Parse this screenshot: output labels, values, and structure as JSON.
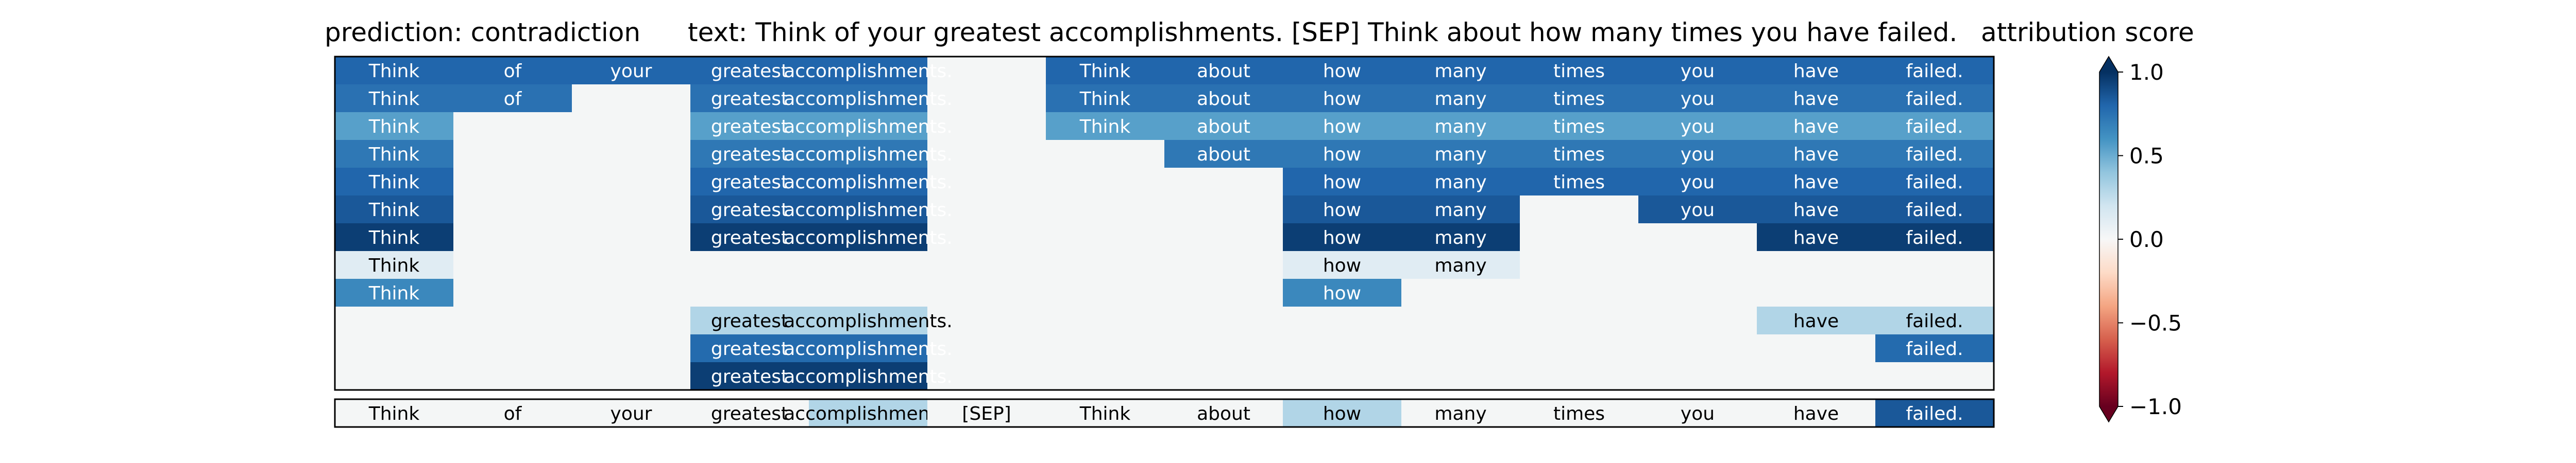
{
  "chart_data": {
    "type": "heatmap",
    "title_left": "prediction:  contradiction",
    "title_mid": "text:  Think of your greatest accomplishments. [SEP] Think about how many times you have failed.",
    "title_right": "attribution score",
    "tokens": [
      "Think",
      "of",
      "your",
      "greatest",
      "accomplishments.",
      "[SEP]",
      "Think",
      "about",
      "how",
      "many",
      "times",
      "you",
      "have",
      "failed."
    ],
    "rows": [
      [
        0.8,
        0.8,
        0.8,
        0.8,
        0.8,
        null,
        0.8,
        0.8,
        0.8,
        0.8,
        0.8,
        0.8,
        0.8,
        0.8
      ],
      [
        0.75,
        0.75,
        null,
        0.75,
        0.75,
        null,
        0.75,
        0.75,
        0.75,
        0.75,
        0.75,
        0.75,
        0.75,
        0.75
      ],
      [
        0.55,
        null,
        null,
        0.55,
        0.55,
        null,
        0.55,
        0.55,
        0.55,
        0.55,
        0.55,
        0.55,
        0.55,
        0.55
      ],
      [
        0.72,
        null,
        null,
        0.72,
        0.72,
        null,
        null,
        0.72,
        0.72,
        0.72,
        0.72,
        0.72,
        0.72,
        0.72
      ],
      [
        0.8,
        null,
        null,
        0.8,
        0.8,
        null,
        null,
        null,
        0.8,
        0.8,
        0.8,
        0.8,
        0.8,
        0.8
      ],
      [
        0.85,
        null,
        null,
        0.85,
        0.85,
        null,
        null,
        null,
        0.85,
        0.85,
        null,
        0.85,
        0.85,
        0.85
      ],
      [
        0.95,
        null,
        null,
        0.95,
        0.95,
        null,
        null,
        null,
        0.95,
        0.95,
        null,
        null,
        0.95,
        0.95
      ],
      [
        0.12,
        null,
        null,
        null,
        null,
        null,
        null,
        null,
        0.12,
        0.12,
        null,
        null,
        null,
        null
      ],
      [
        0.65,
        null,
        null,
        null,
        null,
        null,
        null,
        null,
        0.65,
        null,
        null,
        null,
        null,
        null
      ],
      [
        null,
        null,
        null,
        0.3,
        0.3,
        null,
        null,
        null,
        null,
        null,
        null,
        null,
        0.3,
        0.3
      ],
      [
        null,
        null,
        null,
        0.78,
        0.78,
        null,
        null,
        null,
        null,
        null,
        null,
        null,
        null,
        0.78
      ],
      [
        null,
        null,
        null,
        0.95,
        0.95,
        null,
        null,
        null,
        null,
        null,
        null,
        null,
        null,
        null
      ]
    ],
    "summary_row": [
      0.0,
      0.0,
      0.0,
      0.0,
      0.3,
      0.0,
      0.0,
      0.0,
      0.3,
      0.0,
      0.0,
      0.0,
      0.0,
      0.85
    ],
    "colorbar": {
      "colormap": "RdBu",
      "range": [
        -1.0,
        1.0
      ],
      "tick_values": [
        1.0,
        0.5,
        0.0,
        -0.5,
        -1.0
      ],
      "tick_labels": [
        "1.0",
        "0.5",
        "0.0",
        "−0.5",
        "−1.0"
      ],
      "extend": "both"
    }
  }
}
